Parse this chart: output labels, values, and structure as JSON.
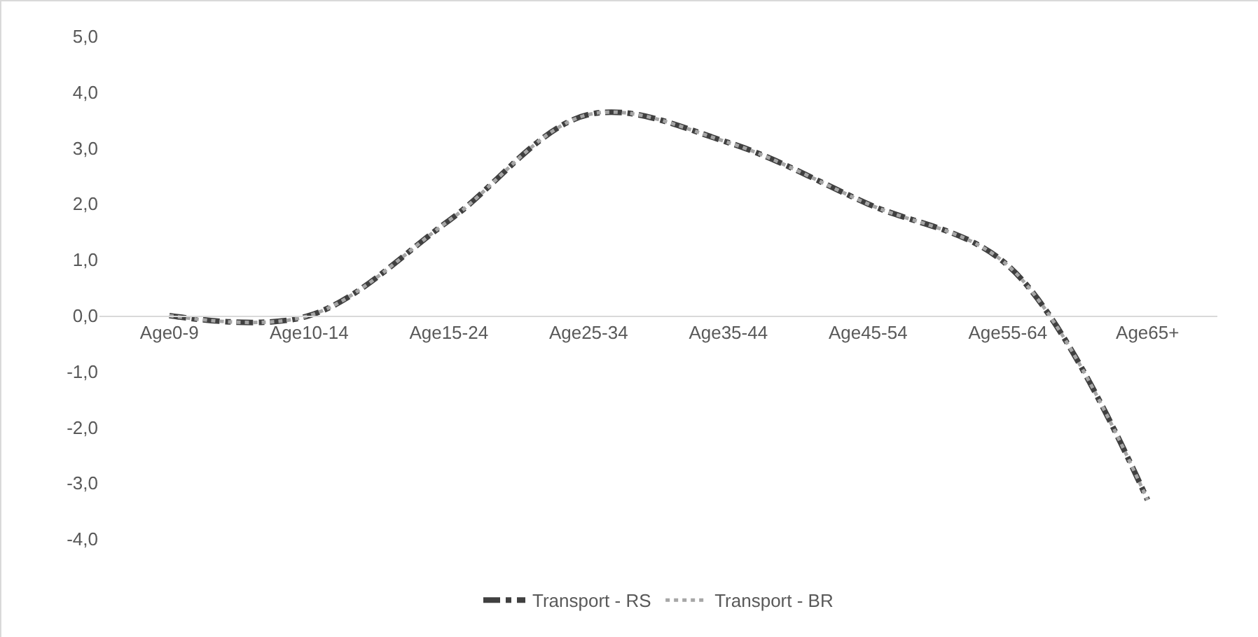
{
  "chart_data": {
    "type": "line",
    "categories": [
      "Age0-9",
      "Age10-14",
      "Age15-24",
      "Age25-34",
      "Age35-44",
      "Age45-54",
      "Age55-64",
      "Age65+"
    ],
    "series": [
      {
        "name": "Transport - RS",
        "color": "#404040",
        "line_style": "dashed",
        "values": [
          0.0,
          0.0,
          1.7,
          3.6,
          3.1,
          2.0,
          0.9,
          -3.3
        ]
      },
      {
        "name": "Transport - BR",
        "color": "#a6a6a6",
        "line_style": "dotted",
        "values": [
          0.0,
          0.0,
          1.7,
          3.6,
          3.1,
          2.0,
          0.9,
          -3.3
        ]
      }
    ],
    "ylim": [
      -4,
      5
    ],
    "yticks": [
      {
        "value": 5,
        "label": "5,0"
      },
      {
        "value": 4,
        "label": "4,0"
      },
      {
        "value": 3,
        "label": "3,0"
      },
      {
        "value": 2,
        "label": "2,0"
      },
      {
        "value": 1,
        "label": "1,0"
      },
      {
        "value": 0,
        "label": "0,0"
      },
      {
        "value": -1,
        "label": "-1,0"
      },
      {
        "value": -2,
        "label": "-2,0"
      },
      {
        "value": -3,
        "label": "-3,0"
      },
      {
        "value": -4,
        "label": "-4,0"
      }
    ],
    "grid": false,
    "legend": "bottom",
    "marker": "none"
  }
}
